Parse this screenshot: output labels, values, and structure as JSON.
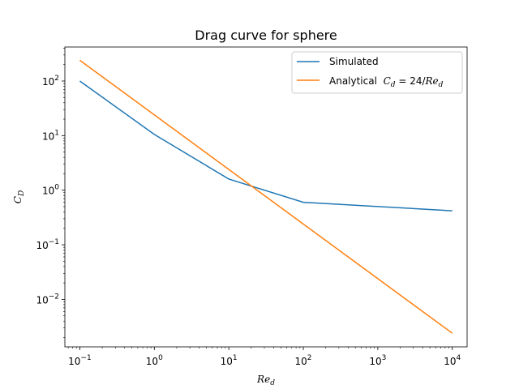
{
  "chart_data": {
    "type": "line",
    "title": "Drag curve for sphere",
    "xlabel": "Re",
    "xlabel_sub": "d",
    "ylabel": "C",
    "ylabel_sub": "D",
    "xscale": "log",
    "yscale": "log",
    "xlim": [
      0.063,
      15800
    ],
    "ylim": [
      0.00135,
      420
    ],
    "grid": false,
    "legend_position": "upper-right",
    "x_ticks": [
      {
        "value": 0.1,
        "exp": "−1"
      },
      {
        "value": 1,
        "exp": "0"
      },
      {
        "value": 10,
        "exp": "1"
      },
      {
        "value": 100,
        "exp": "2"
      },
      {
        "value": 1000,
        "exp": "3"
      },
      {
        "value": 10000,
        "exp": "4"
      }
    ],
    "y_ticks": [
      {
        "value": 0.01,
        "exp": "−2"
      },
      {
        "value": 0.1,
        "exp": "−1"
      },
      {
        "value": 1,
        "exp": "0"
      },
      {
        "value": 10,
        "exp": "1"
      },
      {
        "value": 100,
        "exp": "2"
      }
    ],
    "series": [
      {
        "name": "Simulated",
        "color": "#1f77b4",
        "x": [
          0.1,
          1,
          10,
          100,
          10000
        ],
        "y": [
          100,
          10.5,
          1.6,
          0.6,
          0.42
        ]
      },
      {
        "name_prefix": "Analytical  ",
        "name_formula": "C",
        "name_formula_sub": "d",
        "name_formula_mid": " = 24/",
        "name_formula_tail": "Re",
        "name_formula_tail_sub": "d",
        "color": "#ff7f0e",
        "x": [
          0.1,
          10000
        ],
        "y": [
          240,
          0.0024
        ]
      }
    ]
  }
}
